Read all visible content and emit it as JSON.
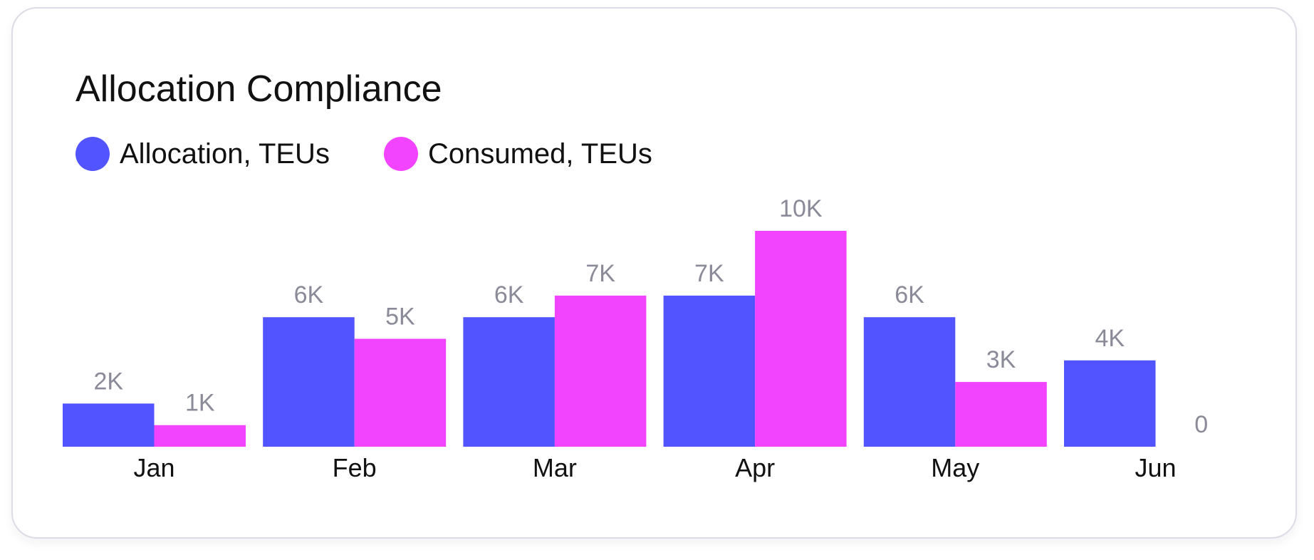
{
  "chart_data": {
    "type": "bar",
    "title": "Allocation Compliance",
    "categories": [
      "Jan",
      "Feb",
      "Mar",
      "Apr",
      "May",
      "Jun"
    ],
    "series": [
      {
        "name": "Allocation, TEUs",
        "color": "#5254ff",
        "values": [
          2000,
          6000,
          6000,
          7000,
          6000,
          4000
        ],
        "labels": [
          "2K",
          "6K",
          "6K",
          "7K",
          "6K",
          "4K"
        ]
      },
      {
        "name": "Consumed, TEUs",
        "color": "#f244ff",
        "values": [
          1000,
          5000,
          7000,
          10000,
          3000,
          0
        ],
        "labels": [
          "1K",
          "5K",
          "7K",
          "10K",
          "3K",
          "0"
        ]
      }
    ],
    "ylim": [
      0,
      10000
    ],
    "xlabel": "",
    "ylabel": "",
    "grid": false,
    "legend": "top-left"
  }
}
